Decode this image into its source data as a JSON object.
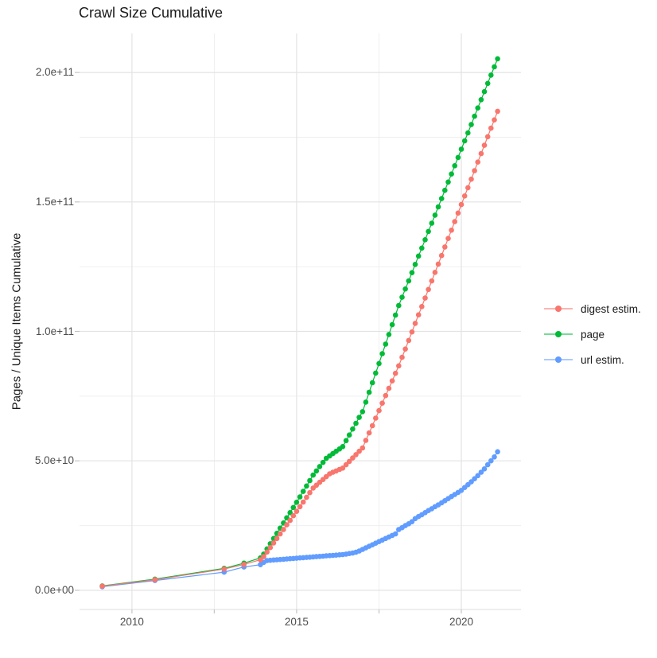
{
  "chart_data": {
    "type": "line",
    "style": "line+points",
    "title": "Crawl Size Cumulative",
    "xlabel": "",
    "ylabel": "Pages / Unique Items Cumulative",
    "grid": true,
    "legend_position": "right",
    "xlim": [
      2008.41,
      2021.81
    ],
    "ylim": [
      -7400000000.0,
      215100000000.0
    ],
    "x_ticks": {
      "labels": [
        "2010",
        "2015",
        "2020"
      ],
      "values": [
        2010,
        2015,
        2020
      ]
    },
    "x_minor_ticks": [
      2012.5,
      2017.5
    ],
    "y_ticks": {
      "labels": [
        "0.0e+00",
        "5.0e+10",
        "1.0e+11",
        "1.5e+11",
        "2.0e+11"
      ],
      "values": [
        0,
        50000000000.0,
        100000000000.0,
        150000000000.0,
        200000000000.0
      ]
    },
    "y_minor_ticks": [
      25000000000.0,
      75000000000.0,
      125000000000.0,
      175000000000.0
    ],
    "colors": {
      "background": "#FFFFFF",
      "grid_major": "#E3E3E3",
      "grid_minor": "#EFEFEF",
      "tick": "#C4C4C4",
      "axis_line": "#DEDEDE",
      "axis_text": "#4D4D4D",
      "title_text": "#1A1A1A"
    },
    "series": [
      {
        "name": "digest estim.",
        "color": "#F8766D",
        "points": [
          [
            2009.1,
            1600000000.0
          ],
          [
            2010.7,
            4100000000.0
          ],
          [
            2012.8,
            8200000000.0
          ],
          [
            2013.4,
            10000000000.0
          ],
          [
            2013.9,
            11800000000.0
          ],
          [
            2014.0,
            13000000000.0
          ],
          [
            2014.1,
            14800000000.0
          ],
          [
            2014.2,
            16500000000.0
          ],
          [
            2014.3,
            18300000000.0
          ],
          [
            2014.4,
            20000000000.0
          ],
          [
            2014.5,
            21800000000.0
          ],
          [
            2014.6,
            23500000000.0
          ],
          [
            2014.7,
            25300000000.0
          ],
          [
            2014.8,
            27000000000.0
          ],
          [
            2014.9,
            28800000000.0
          ],
          [
            2015.0,
            30500000000.0
          ],
          [
            2015.1,
            32300000000.0
          ],
          [
            2015.2,
            34100000000.0
          ],
          [
            2015.3,
            35900000000.0
          ],
          [
            2015.4,
            37700000000.0
          ],
          [
            2015.5,
            39500000000.0
          ],
          [
            2015.6,
            40600000000.0
          ],
          [
            2015.7,
            41700000000.0
          ],
          [
            2015.8,
            42800000000.0
          ],
          [
            2015.9,
            43900000000.0
          ],
          [
            2016.0,
            45000000000.0
          ],
          [
            2016.1,
            45600000000.0
          ],
          [
            2016.2,
            46100000000.0
          ],
          [
            2016.3,
            46700000000.0
          ],
          [
            2016.4,
            47200000000.0
          ],
          [
            2016.5,
            48500000000.0
          ],
          [
            2016.6,
            49800000000.0
          ],
          [
            2016.7,
            51100000000.0
          ],
          [
            2016.8,
            52400000000.0
          ],
          [
            2016.9,
            53700000000.0
          ],
          [
            2017.0,
            55000000000.0
          ],
          [
            2017.1,
            57900000000.0
          ],
          [
            2017.2,
            60800000000.0
          ],
          [
            2017.3,
            63600000000.0
          ],
          [
            2017.4,
            66500000000.0
          ],
          [
            2017.5,
            69400000000.0
          ],
          [
            2017.6,
            72300000000.0
          ],
          [
            2017.7,
            75200000000.0
          ],
          [
            2017.8,
            78000000000.0
          ],
          [
            2017.9,
            80900000000.0
          ],
          [
            2018.0,
            83800000000.0
          ],
          [
            2018.1,
            86700000000.0
          ],
          [
            2018.2,
            90000000000.0
          ],
          [
            2018.3,
            93200000000.0
          ],
          [
            2018.4,
            96500000000.0
          ],
          [
            2018.5,
            99800000000.0
          ],
          [
            2018.6,
            103100000000.0
          ],
          [
            2018.7,
            106400000000.0
          ],
          [
            2018.8,
            109600000000.0
          ],
          [
            2018.9,
            112900000000.0
          ],
          [
            2019.0,
            116200000000.0
          ],
          [
            2019.1,
            119500000000.0
          ],
          [
            2019.2,
            122800000000.0
          ],
          [
            2019.3,
            126000000000.0
          ],
          [
            2019.4,
            129300000000.0
          ],
          [
            2019.5,
            132600000000.0
          ],
          [
            2019.6,
            135900000000.0
          ],
          [
            2019.7,
            139100000000.0
          ],
          [
            2019.8,
            142400000000.0
          ],
          [
            2019.9,
            145700000000.0
          ],
          [
            2020.0,
            149000000000.0
          ],
          [
            2020.1,
            152300000000.0
          ],
          [
            2020.2,
            155500000000.0
          ],
          [
            2020.3,
            158800000000.0
          ],
          [
            2020.4,
            162100000000.0
          ],
          [
            2020.5,
            165400000000.0
          ],
          [
            2020.6,
            168700000000.0
          ],
          [
            2020.7,
            171900000000.0
          ],
          [
            2020.8,
            175200000000.0
          ],
          [
            2020.9,
            178500000000.0
          ],
          [
            2021.0,
            181700000000.0
          ],
          [
            2021.1,
            185000000000.0
          ]
        ]
      },
      {
        "name": "page",
        "color": "#00BA38",
        "points": [
          [
            2009.1,
            1700000000.0
          ],
          [
            2010.7,
            4300000000.0
          ],
          [
            2012.8,
            8500000000.0
          ],
          [
            2013.4,
            10500000000.0
          ],
          [
            2013.9,
            12500000000.0
          ],
          [
            2014.0,
            14000000000.0
          ],
          [
            2014.1,
            16000000000.0
          ],
          [
            2014.2,
            18000000000.0
          ],
          [
            2014.3,
            20000000000.0
          ],
          [
            2014.4,
            22000000000.0
          ],
          [
            2014.5,
            24000000000.0
          ],
          [
            2014.6,
            26000000000.0
          ],
          [
            2014.7,
            28000000000.0
          ],
          [
            2014.8,
            30000000000.0
          ],
          [
            2014.9,
            32000000000.0
          ],
          [
            2015.0,
            34000000000.0
          ],
          [
            2015.1,
            36100000000.0
          ],
          [
            2015.2,
            38200000000.0
          ],
          [
            2015.3,
            40300000000.0
          ],
          [
            2015.4,
            42400000000.0
          ],
          [
            2015.5,
            44500000000.0
          ],
          [
            2015.6,
            46100000000.0
          ],
          [
            2015.7,
            47800000000.0
          ],
          [
            2015.8,
            49400000000.0
          ],
          [
            2015.9,
            51000000000.0
          ],
          [
            2016.0,
            51900000000.0
          ],
          [
            2016.1,
            52800000000.0
          ],
          [
            2016.2,
            53700000000.0
          ],
          [
            2016.3,
            54600000000.0
          ],
          [
            2016.4,
            55500000000.0
          ],
          [
            2016.5,
            57800000000.0
          ],
          [
            2016.6,
            60000000000.0
          ],
          [
            2016.7,
            62300000000.0
          ],
          [
            2016.8,
            64500000000.0
          ],
          [
            2016.9,
            66800000000.0
          ],
          [
            2017.0,
            69000000000.0
          ],
          [
            2017.1,
            72700000000.0
          ],
          [
            2017.2,
            76500000000.0
          ],
          [
            2017.3,
            80200000000.0
          ],
          [
            2017.4,
            83900000000.0
          ],
          [
            2017.5,
            87600000000.0
          ],
          [
            2017.6,
            91400000000.0
          ],
          [
            2017.7,
            95100000000.0
          ],
          [
            2017.8,
            98800000000.0
          ],
          [
            2017.9,
            102600000000.0
          ],
          [
            2018.0,
            106300000000.0
          ],
          [
            2018.1,
            110000000000.0
          ],
          [
            2018.2,
            113200000000.0
          ],
          [
            2018.3,
            116400000000.0
          ],
          [
            2018.4,
            119500000000.0
          ],
          [
            2018.5,
            122700000000.0
          ],
          [
            2018.6,
            125900000000.0
          ],
          [
            2018.7,
            129100000000.0
          ],
          [
            2018.8,
            132200000000.0
          ],
          [
            2018.9,
            135400000000.0
          ],
          [
            2019.0,
            138600000000.0
          ],
          [
            2019.1,
            141800000000.0
          ],
          [
            2019.2,
            144900000000.0
          ],
          [
            2019.3,
            148100000000.0
          ],
          [
            2019.4,
            151300000000.0
          ],
          [
            2019.5,
            154500000000.0
          ],
          [
            2019.6,
            157700000000.0
          ],
          [
            2019.7,
            160800000000.0
          ],
          [
            2019.8,
            164000000000.0
          ],
          [
            2019.9,
            167200000000.0
          ],
          [
            2020.0,
            170400000000.0
          ],
          [
            2020.1,
            173600000000.0
          ],
          [
            2020.2,
            176700000000.0
          ],
          [
            2020.3,
            179900000000.0
          ],
          [
            2020.4,
            183100000000.0
          ],
          [
            2020.5,
            186300000000.0
          ],
          [
            2020.6,
            189500000000.0
          ],
          [
            2020.7,
            192600000000.0
          ],
          [
            2020.8,
            195800000000.0
          ],
          [
            2020.9,
            199000000000.0
          ],
          [
            2021.0,
            202200000000.0
          ],
          [
            2021.1,
            205300000000.0
          ]
        ]
      },
      {
        "name": "url estim.",
        "color": "#619CFF",
        "points": [
          [
            2009.1,
            1400000000.0
          ],
          [
            2010.7,
            3800000000.0
          ],
          [
            2012.8,
            7000000000.0
          ],
          [
            2013.4,
            9000000000.0
          ],
          [
            2013.9,
            9900000000.0
          ],
          [
            2014.0,
            10800000000.0
          ],
          [
            2014.1,
            11500000000.0
          ],
          [
            2014.2,
            11600000000.0
          ],
          [
            2014.3,
            11700000000.0
          ],
          [
            2014.4,
            11800000000.0
          ],
          [
            2014.5,
            11900000000.0
          ],
          [
            2014.6,
            12000000000.0
          ],
          [
            2014.7,
            12100000000.0
          ],
          [
            2014.8,
            12200000000.0
          ],
          [
            2014.9,
            12300000000.0
          ],
          [
            2015.0,
            12400000000.0
          ],
          [
            2015.1,
            12500000000.0
          ],
          [
            2015.2,
            12600000000.0
          ],
          [
            2015.3,
            12700000000.0
          ],
          [
            2015.4,
            12800000000.0
          ],
          [
            2015.5,
            12900000000.0
          ],
          [
            2015.6,
            13000000000.0
          ],
          [
            2015.7,
            13100000000.0
          ],
          [
            2015.8,
            13200000000.0
          ],
          [
            2015.9,
            13300000000.0
          ],
          [
            2016.0,
            13400000000.0
          ],
          [
            2016.1,
            13500000000.0
          ],
          [
            2016.2,
            13600000000.0
          ],
          [
            2016.3,
            13700000000.0
          ],
          [
            2016.4,
            13800000000.0
          ],
          [
            2016.5,
            14000000000.0
          ],
          [
            2016.6,
            14200000000.0
          ],
          [
            2016.7,
            14400000000.0
          ],
          [
            2016.8,
            14700000000.0
          ],
          [
            2016.9,
            15200000000.0
          ],
          [
            2017.0,
            15800000000.0
          ],
          [
            2017.1,
            16400000000.0
          ],
          [
            2017.2,
            17000000000.0
          ],
          [
            2017.3,
            17600000000.0
          ],
          [
            2017.4,
            18200000000.0
          ],
          [
            2017.5,
            18800000000.0
          ],
          [
            2017.6,
            19400000000.0
          ],
          [
            2017.7,
            20000000000.0
          ],
          [
            2017.8,
            20600000000.0
          ],
          [
            2017.9,
            21200000000.0
          ],
          [
            2018.0,
            21800000000.0
          ],
          [
            2018.1,
            23500000000.0
          ],
          [
            2018.2,
            24200000000.0
          ],
          [
            2018.3,
            25000000000.0
          ],
          [
            2018.4,
            25700000000.0
          ],
          [
            2018.5,
            26500000000.0
          ],
          [
            2018.6,
            27700000000.0
          ],
          [
            2018.7,
            28500000000.0
          ],
          [
            2018.8,
            29200000000.0
          ],
          [
            2018.9,
            30000000000.0
          ],
          [
            2019.0,
            30800000000.0
          ],
          [
            2019.1,
            31500000000.0
          ],
          [
            2019.2,
            32300000000.0
          ],
          [
            2019.3,
            33000000000.0
          ],
          [
            2019.4,
            33800000000.0
          ],
          [
            2019.5,
            34600000000.0
          ],
          [
            2019.6,
            35400000000.0
          ],
          [
            2019.7,
            36200000000.0
          ],
          [
            2019.8,
            37000000000.0
          ],
          [
            2019.9,
            37800000000.0
          ],
          [
            2020.0,
            38600000000.0
          ],
          [
            2020.1,
            39700000000.0
          ],
          [
            2020.2,
            40800000000.0
          ],
          [
            2020.3,
            41900000000.0
          ],
          [
            2020.4,
            43100000000.0
          ],
          [
            2020.5,
            44300000000.0
          ],
          [
            2020.6,
            45600000000.0
          ],
          [
            2020.7,
            46900000000.0
          ],
          [
            2020.8,
            48500000000.0
          ],
          [
            2020.9,
            50000000000.0
          ],
          [
            2021.0,
            51500000000.0
          ],
          [
            2021.1,
            53500000000.0
          ]
        ]
      }
    ]
  }
}
